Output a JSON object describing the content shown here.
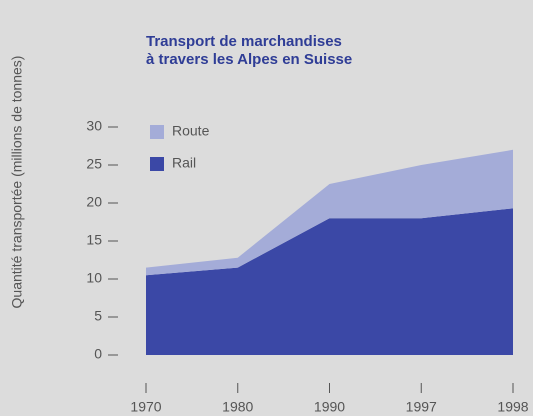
{
  "chart_data": {
    "type": "stacked_area",
    "title": [
      "Transport de marchandises",
      "à travers les Alpes en Suisse"
    ],
    "y_label": "Quantité transportée (millions de tonnes)",
    "categories": [
      "1970",
      "1980",
      "1990",
      "1997",
      "1998"
    ],
    "series": [
      {
        "name": "Rail",
        "color": "#3b48a6",
        "values": [
          10.5,
          11.5,
          18,
          18,
          19.3
        ]
      },
      {
        "name": "Route",
        "color": "#a4acd8",
        "values": [
          1.0,
          1.3,
          4.5,
          7,
          7.7
        ]
      }
    ],
    "ylim": [
      0,
      30
    ],
    "yticks": [
      0,
      5,
      10,
      15,
      20,
      25,
      30
    ]
  }
}
